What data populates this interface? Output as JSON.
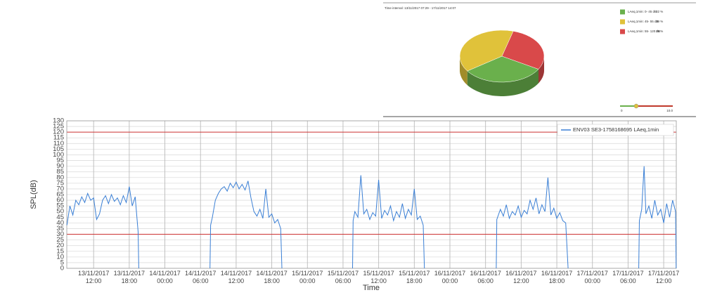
{
  "chart_data": [
    {
      "type": "pie",
      "title": "Time interval: 13/11/2017 07:29 - 17/11/2017 14:07",
      "categories": [
        "LAeq,1min: 0- 45 dB",
        "LAeq,1min: 45- 55 dB",
        "LAeq,1min: 55- 120 dB"
      ],
      "values": [
        32,
        39,
        29
      ],
      "value_labels": [
        "32 %",
        "39 %",
        "29 %"
      ],
      "colors": [
        "#6ab04c",
        "#e0c23a",
        "#d9494a"
      ],
      "slider_labels": [
        "0",
        "10.0"
      ]
    },
    {
      "type": "line",
      "x_label": "Time",
      "y_label": "SPL(dB)",
      "xlim": [
        7.48,
        110.12
      ],
      "ylim": [
        0,
        130
      ],
      "yticks": [
        0,
        5,
        10,
        15,
        20,
        25,
        30,
        35,
        40,
        45,
        50,
        55,
        60,
        65,
        70,
        75,
        80,
        85,
        90,
        95,
        100,
        105,
        110,
        115,
        120,
        125,
        130
      ],
      "xticks": [
        {
          "value": 12,
          "label": "13/11/2017 12:00"
        },
        {
          "value": 18,
          "label": "13/11/2017 18:00"
        },
        {
          "value": 24,
          "label": "14/11/2017 00:00"
        },
        {
          "value": 30,
          "label": "14/11/2017 06:00"
        },
        {
          "value": 36,
          "label": "14/11/2017 12:00"
        },
        {
          "value": 42,
          "label": "14/11/2017 18:00"
        },
        {
          "value": 48,
          "label": "15/11/2017 00:00"
        },
        {
          "value": 54,
          "label": "15/11/2017 06:00"
        },
        {
          "value": 60,
          "label": "15/11/2017 12:00"
        },
        {
          "value": 66,
          "label": "15/11/2017 18:00"
        },
        {
          "value": 72,
          "label": "16/11/2017 00:00"
        },
        {
          "value": 78,
          "label": "16/11/2017 06:00"
        },
        {
          "value": 84,
          "label": "16/11/2017 12:00"
        },
        {
          "value": 90,
          "label": "16/11/2017 18:00"
        },
        {
          "value": 96,
          "label": "17/11/2017 00:00"
        },
        {
          "value": 102,
          "label": "17/11/2017 06:00"
        },
        {
          "value": 108,
          "label": "17/11/2017 12:00"
        }
      ],
      "grid": true,
      "hlines": [
        30,
        120
      ],
      "hline_color": "#cc3333",
      "legend": "upper right",
      "series": [
        {
          "name": "ENV03 SE3-1758168695 LAeq,1min",
          "color": "#3a7fd5",
          "x": [
            7.5,
            8,
            8.5,
            9,
            9.5,
            10,
            10.5,
            11,
            11.5,
            12,
            12.5,
            13,
            13.5,
            14,
            14.5,
            15,
            15.5,
            16,
            16.5,
            17,
            17.5,
            18,
            18.5,
            19,
            19.5,
            19.6,
            25,
            31.6,
            31.7,
            32,
            32.5,
            33,
            33.5,
            34,
            34.5,
            35,
            35.5,
            36,
            36.5,
            37,
            37.5,
            38,
            38.5,
            39,
            39.5,
            40,
            40.5,
            41,
            41.5,
            42,
            42.5,
            43,
            43.5,
            43.7,
            50,
            55.6,
            55.7,
            56,
            56.5,
            57,
            57.5,
            58,
            58.5,
            59,
            59.5,
            60,
            60.5,
            61,
            61.5,
            62,
            62.5,
            63,
            63.5,
            64,
            64.5,
            65,
            65.5,
            66,
            66.5,
            67,
            67.5,
            67.7,
            74,
            79.8,
            79.9,
            80.5,
            81,
            81.5,
            82,
            82.5,
            83,
            83.5,
            84,
            84.5,
            85,
            85.5,
            86,
            86.5,
            87,
            87.5,
            88,
            88.5,
            89,
            89.5,
            90,
            90.5,
            91,
            91.5,
            91.9,
            97,
            103.8,
            103.9,
            104.3,
            104.7,
            105,
            105.5,
            106,
            106.5,
            107,
            107.5,
            108,
            108.5,
            109,
            109.5,
            110,
            110.1
          ],
          "values": [
            38,
            55,
            47,
            60,
            56,
            63,
            58,
            66,
            60,
            62,
            43,
            48,
            60,
            64,
            57,
            65,
            59,
            62,
            56,
            64,
            58,
            72,
            55,
            63,
            32,
            0,
            null,
            0,
            38,
            45,
            60,
            66,
            70,
            72,
            68,
            75,
            71,
            76,
            70,
            74,
            69,
            77,
            62,
            50,
            46,
            52,
            44,
            70,
            45,
            48,
            40,
            43,
            35,
            0,
            null,
            0,
            42,
            50,
            45,
            82,
            48,
            52,
            43,
            49,
            46,
            78,
            44,
            51,
            47,
            55,
            42,
            50,
            45,
            57,
            44,
            52,
            47,
            70,
            43,
            46,
            38,
            0,
            null,
            0,
            43,
            52,
            46,
            56,
            44,
            50,
            47,
            55,
            45,
            51,
            48,
            60,
            52,
            62,
            48,
            56,
            50,
            80,
            47,
            53,
            44,
            49,
            42,
            40,
            0,
            null,
            0,
            42,
            52,
            90,
            48,
            55,
            44,
            60,
            47,
            52,
            40,
            57,
            45,
            60,
            50,
            0
          ]
        }
      ]
    }
  ]
}
